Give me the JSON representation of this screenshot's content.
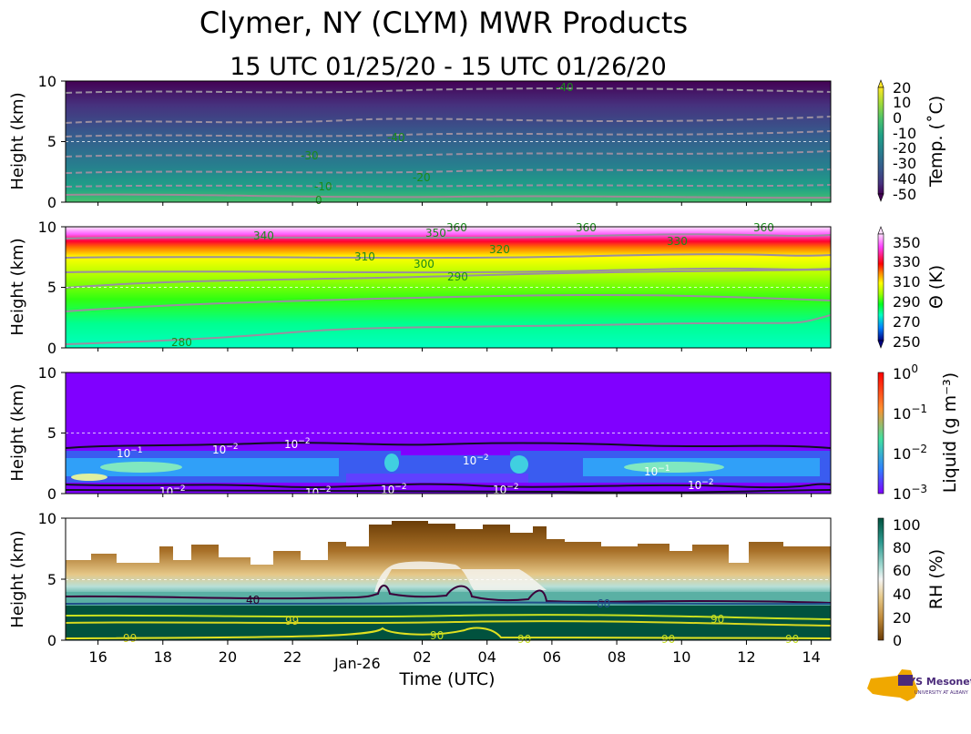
{
  "figure": {
    "title": "Clymer, NY (CLYM) MWR Products",
    "subtitle": "15 UTC 01/25/20 - 15 UTC 01/26/20",
    "xlabel": "Time (UTC)",
    "logo_text": "NYS Mesonet"
  },
  "chart_data": [
    {
      "type": "heatmap",
      "ylabel": "Height (km)",
      "yticks": [
        "0",
        "5",
        "10"
      ],
      "ylim": [
        0,
        10
      ],
      "xlim": [
        15,
        38.6
      ],
      "colorbar": {
        "label": "Temp. (˚C)",
        "ticks": [
          "20",
          "10",
          "0",
          "-10",
          "-20",
          "-30",
          "-40",
          "-50"
        ],
        "colors": [
          "#fde725",
          "#a0da39",
          "#4ac16d",
          "#1fa187",
          "#277f8e",
          "#365c8d",
          "#46327e",
          "#440154"
        ]
      },
      "contours": [
        "-40",
        "-40",
        "-30",
        "-20",
        "-10",
        "0"
      ],
      "contour_label_color": "#1a8a1a",
      "grid": "dashed line at 5 km"
    },
    {
      "type": "heatmap",
      "ylabel": "Height (km)",
      "yticks": [
        "0",
        "5",
        "10"
      ],
      "ylim": [
        0,
        10
      ],
      "colorbar": {
        "label": "Θ (K)",
        "ticks": [
          "350",
          "330",
          "310",
          "290",
          "270",
          "250"
        ],
        "colors": [
          "#ffe0ff",
          "#ff40ff",
          "#ff0000",
          "#ff8000",
          "#ffff00",
          "#a0ff00",
          "#00ff20",
          "#00ffc0",
          "#0080ff",
          "#000080"
        ]
      },
      "contours": [
        "340",
        "350",
        "360",
        "360",
        "360",
        "330",
        "320",
        "310",
        "300",
        "290",
        "280"
      ],
      "contour_label_color": "#1a8a1a",
      "grid": "dashed line at 5 km"
    },
    {
      "type": "heatmap",
      "ylabel": "Height (km)",
      "yticks": [
        "0",
        "5",
        "10"
      ],
      "ylim": [
        0,
        10
      ],
      "colorbar": {
        "label": "Liquid (g m⁻³)",
        "scale": "log",
        "ticks": [
          "10",
          "10",
          "10",
          "10"
        ],
        "tick_exponents": [
          "0",
          "−1",
          "−2",
          "−3"
        ],
        "colors": [
          "#ff0000",
          "#ff9030",
          "#40e0a0",
          "#3080ff",
          "#8000ff"
        ]
      },
      "contours": [
        {
          "base": "10",
          "exp": "−1"
        },
        {
          "base": "10",
          "exp": "−2"
        },
        {
          "base": "10",
          "exp": "−2"
        },
        {
          "base": "10",
          "exp": "−2"
        },
        {
          "base": "10",
          "exp": "−1"
        },
        {
          "base": "10",
          "exp": "−2"
        },
        {
          "base": "10",
          "exp": "−2"
        },
        {
          "base": "10",
          "exp": "−2"
        },
        {
          "base": "10",
          "exp": "−2"
        },
        {
          "base": "10",
          "exp": "−2"
        }
      ],
      "background_color": "#8000ff",
      "grid": "dashed line at 5 km"
    },
    {
      "type": "heatmap",
      "ylabel": "Height (km)",
      "yticks": [
        "0",
        "5",
        "10"
      ],
      "ylim": [
        0,
        10
      ],
      "xticks": [
        "16",
        "18",
        "20",
        "22",
        "Jan-26",
        "02",
        "04",
        "06",
        "08",
        "10",
        "12",
        "14"
      ],
      "xtick_values": [
        16,
        18,
        20,
        22,
        24,
        26,
        28,
        30,
        32,
        34,
        36,
        38
      ],
      "colorbar": {
        "label": "RH (%)",
        "ticks": [
          "100",
          "80",
          "60",
          "40",
          "20",
          "0"
        ],
        "colors": [
          "#01523e",
          "#2d9a90",
          "#a8dcd4",
          "#f5f5f5",
          "#e6c888",
          "#c08a3a",
          "#6a3c06"
        ]
      },
      "contours": [
        "40",
        "60",
        "90",
        "99",
        "99",
        "90",
        "90",
        "90",
        "90"
      ],
      "contour_label_colors": {
        "40": "#2a002a",
        "60": "#20508a",
        "90": "#c8e020",
        "99": "#d8d820"
      },
      "grid": "dashed line at 5 km"
    }
  ]
}
